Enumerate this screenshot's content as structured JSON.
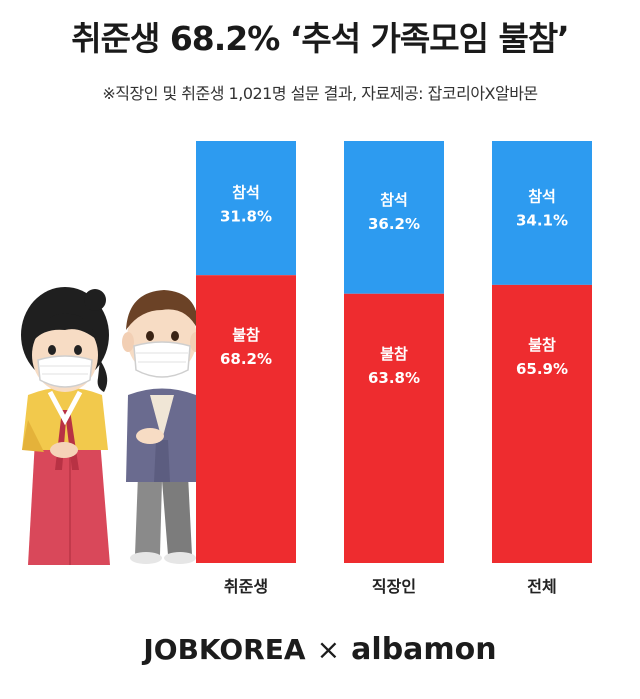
{
  "title": "취준생 68.2% ‘추석 가족모임 불참’",
  "subtitle": "※직장인 및 취준생 1,021명 설문 결과, 자료제공: 잡코리아X알바몬",
  "chart_data": {
    "type": "bar",
    "stacked": true,
    "categories": [
      "취준생",
      "직장인",
      "전체"
    ],
    "series": [
      {
        "name": "참석",
        "values": [
          31.8,
          36.2,
          34.1
        ],
        "labels": [
          "31.8%",
          "36.2%",
          "34.1%"
        ],
        "color": "#2d9bf0"
      },
      {
        "name": "불참",
        "values": [
          68.2,
          63.8,
          65.9
        ],
        "labels": [
          "68.2%",
          "63.8%",
          "65.9%"
        ],
        "color": "#ee2c2f"
      }
    ],
    "ylim": [
      0,
      100
    ]
  },
  "footer": {
    "brand_left": "JOBKOREA",
    "separator": "×",
    "brand_right": "albamon"
  }
}
